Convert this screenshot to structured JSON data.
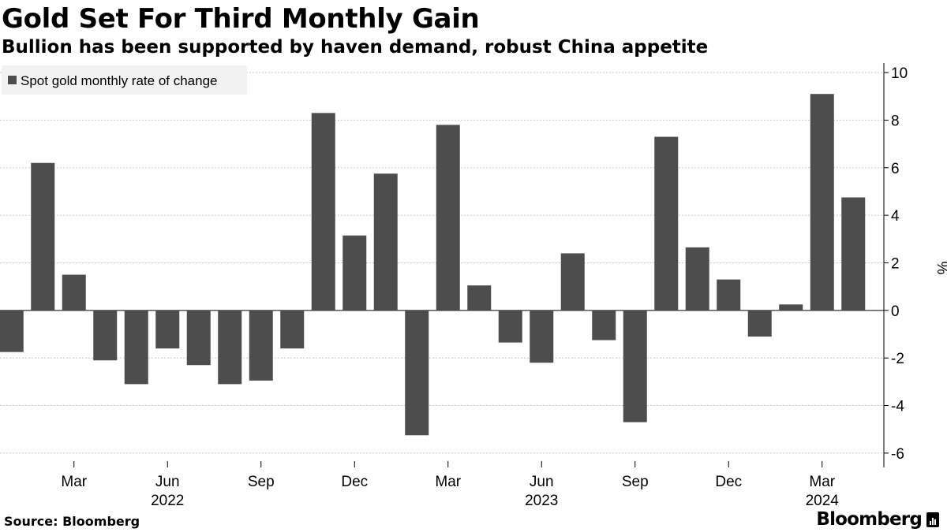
{
  "title": "Gold Set For Third Monthly Gain",
  "subtitle": "Bullion has been supported by haven demand, robust China appetite",
  "source": "Source: Bloomberg",
  "brand": "Bloomberg",
  "chart_data": {
    "type": "bar",
    "title": "Gold Set For Third Monthly Gain",
    "subtitle": "Bullion has been supported by haven demand, robust China appetite",
    "xlabel": "",
    "ylabel": "%",
    "ylim": [
      -6.6,
      10.4
    ],
    "yticks": [
      10,
      8,
      6,
      4,
      2,
      0,
      -2,
      -4,
      -6
    ],
    "y_axis_position": "right",
    "grid": true,
    "legend_position": "top-left",
    "bar_color": "#4d4d4d",
    "categories": [
      "2022-01",
      "2022-02",
      "2022-03",
      "2022-04",
      "2022-05",
      "2022-06",
      "2022-07",
      "2022-08",
      "2022-09",
      "2022-10",
      "2022-11",
      "2022-12",
      "2023-01",
      "2023-02",
      "2023-03",
      "2023-04",
      "2023-05",
      "2023-06",
      "2023-07",
      "2023-08",
      "2023-09",
      "2023-10",
      "2023-11",
      "2023-12",
      "2024-01",
      "2024-02",
      "2024-03",
      "2024-04"
    ],
    "series": [
      {
        "name": "Spot gold monthly rate of change",
        "values": [
          -1.75,
          6.2,
          1.5,
          -2.1,
          -3.1,
          -1.6,
          -2.3,
          -3.1,
          -2.95,
          -1.6,
          8.3,
          3.15,
          5.75,
          -5.25,
          7.8,
          1.05,
          -1.35,
          -2.2,
          2.4,
          -1.25,
          -4.7,
          7.3,
          2.65,
          1.3,
          -1.1,
          0.25,
          9.1,
          4.75
        ]
      }
    ],
    "x_tick_labels": [
      {
        "label": "Mar",
        "index": 2
      },
      {
        "label": "Jun",
        "index": 5
      },
      {
        "label": "Sep",
        "index": 8
      },
      {
        "label": "Dec",
        "index": 11
      },
      {
        "label": "Mar",
        "index": 14
      },
      {
        "label": "Jun",
        "index": 17
      },
      {
        "label": "Sep",
        "index": 20
      },
      {
        "label": "Dec",
        "index": 23
      },
      {
        "label": "Mar",
        "index": 26
      }
    ],
    "x_year_labels": [
      {
        "label": "2022",
        "index": 5
      },
      {
        "label": "2023",
        "index": 17
      },
      {
        "label": "2024",
        "index": 26
      }
    ]
  }
}
